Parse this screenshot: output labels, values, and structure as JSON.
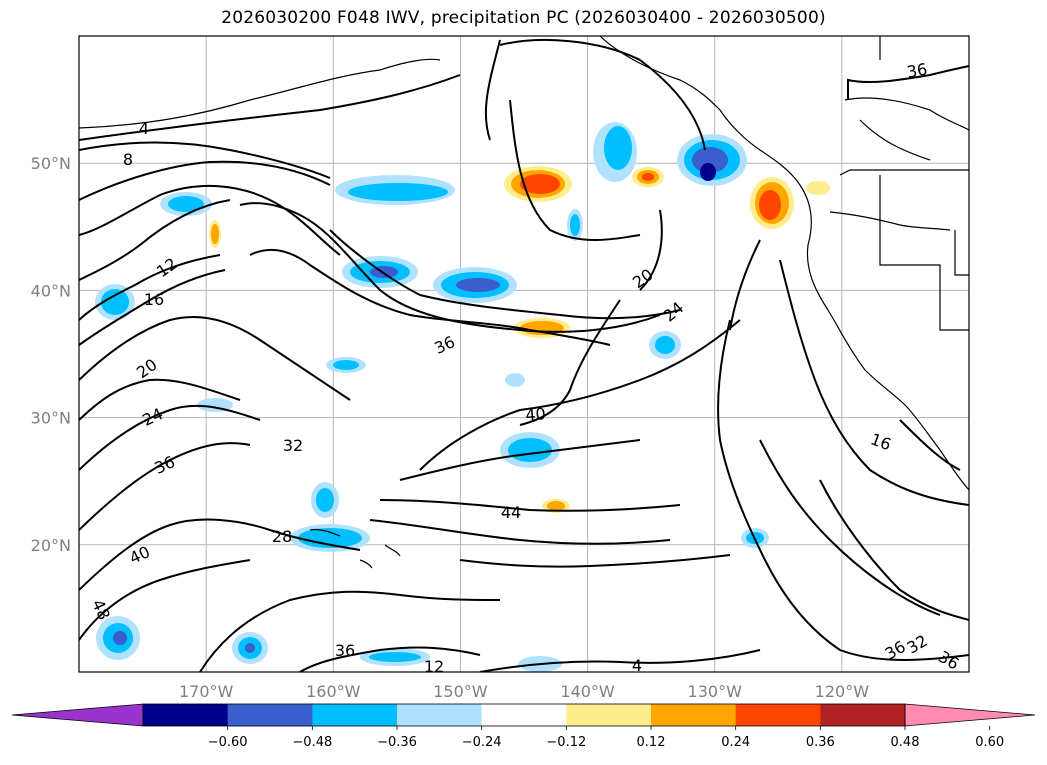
{
  "title": "2026030200 F048 IWV, precipitation PC (2026030400 - 2026030500)",
  "map": {
    "lat_ticks": [
      {
        "lat": 50,
        "label": "50°N"
      },
      {
        "lat": 40,
        "label": "40°N"
      },
      {
        "lat": 30,
        "label": "30°N"
      },
      {
        "lat": 20,
        "label": "20°N"
      }
    ],
    "lon_ticks": [
      {
        "lon": -170,
        "label": "170°W"
      },
      {
        "lon": -160,
        "label": "160°W"
      },
      {
        "lon": -150,
        "label": "150°W"
      },
      {
        "lon": -140,
        "label": "140°W"
      },
      {
        "lon": -130,
        "label": "130°W"
      },
      {
        "lon": -120,
        "label": "120°W"
      }
    ],
    "extent": {
      "lon": [
        -180,
        -110
      ],
      "lat": [
        10,
        60
      ]
    },
    "contour_labels": [
      "4",
      "8",
      "12",
      "16",
      "20",
      "24",
      "32",
      "36",
      "40",
      "48",
      "44",
      "28",
      "36",
      "36",
      "24",
      "20",
      "16",
      "12",
      "36",
      "4",
      "36",
      "32",
      "36",
      "40"
    ]
  },
  "colorbar": {
    "ticks": [
      "−0.60",
      "−0.48",
      "−0.36",
      "−0.24",
      "−0.12",
      "0.12",
      "0.24",
      "0.36",
      "0.48",
      "0.60"
    ],
    "colors": [
      "#9a32cd",
      "#00008b",
      "#3a5fcd",
      "#00bfff",
      "#b0e2ff",
      "#ffffff",
      "#ffec8b",
      "#ffa500",
      "#ff4500",
      "#b22222",
      "#ff8cb0"
    ]
  }
}
